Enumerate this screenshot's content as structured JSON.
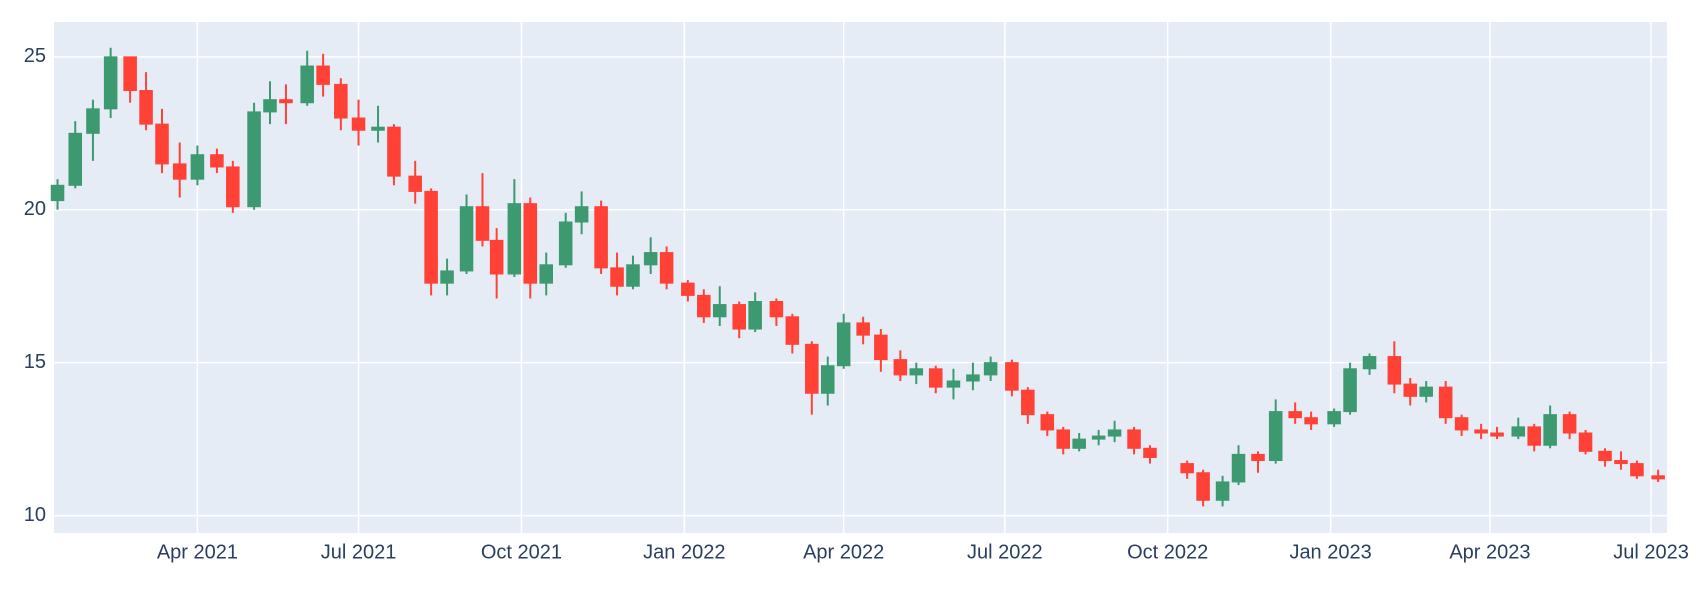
{
  "chart_data": {
    "type": "candlestick",
    "increasing_color": "#3D9970",
    "decreasing_color": "#FF4136",
    "grid": true,
    "xlim": [
      "2021-01-10",
      "2023-07-10"
    ],
    "xticks": [
      {
        "value": "2021-04-01",
        "label": "Apr 2021"
      },
      {
        "value": "2021-07-01",
        "label": "Jul 2021"
      },
      {
        "value": "2021-10-01",
        "label": "Oct 2021"
      },
      {
        "value": "2022-01-01",
        "label": "Jan 2022"
      },
      {
        "value": "2022-04-01",
        "label": "Apr 2022"
      },
      {
        "value": "2022-07-01",
        "label": "Jul 2022"
      },
      {
        "value": "2022-10-01",
        "label": "Oct 2022"
      },
      {
        "value": "2023-01-01",
        "label": "Jan 2023"
      },
      {
        "value": "2023-04-01",
        "label": "Apr 2023"
      },
      {
        "value": "2023-07-01",
        "label": "Jul 2023"
      }
    ],
    "ylim": [
      9.43,
      26.14
    ],
    "yticks": [
      10,
      15,
      20,
      25
    ],
    "x": [
      "2021-01-12",
      "2021-01-22",
      "2021-02-01",
      "2021-02-11",
      "2021-02-22",
      "2021-03-03",
      "2021-03-12",
      "2021-03-22",
      "2021-04-01",
      "2021-04-12",
      "2021-04-21",
      "2021-05-03",
      "2021-05-12",
      "2021-05-21",
      "2021-06-02",
      "2021-06-11",
      "2021-06-21",
      "2021-07-01",
      "2021-07-12",
      "2021-07-21",
      "2021-08-02",
      "2021-08-11",
      "2021-08-20",
      "2021-08-31",
      "2021-09-09",
      "2021-09-17",
      "2021-09-27",
      "2021-10-06",
      "2021-10-15",
      "2021-10-26",
      "2021-11-04",
      "2021-11-15",
      "2021-11-24",
      "2021-12-03",
      "2021-12-13",
      "2021-12-22",
      "2022-01-03",
      "2022-01-12",
      "2022-01-21",
      "2022-02-01",
      "2022-02-10",
      "2022-02-22",
      "2022-03-03",
      "2022-03-14",
      "2022-03-23",
      "2022-04-01",
      "2022-04-12",
      "2022-04-22",
      "2022-05-03",
      "2022-05-12",
      "2022-05-23",
      "2022-06-02",
      "2022-06-13",
      "2022-06-23",
      "2022-07-05",
      "2022-07-14",
      "2022-07-25",
      "2022-08-03",
      "2022-08-12",
      "2022-08-23",
      "2022-09-01",
      "2022-09-12",
      "2022-09-21",
      "2022-10-12",
      "2022-10-21",
      "2022-11-01",
      "2022-11-10",
      "2022-11-21",
      "2022-12-01",
      "2022-12-12",
      "2022-12-21",
      "2023-01-03",
      "2023-01-12",
      "2023-01-23",
      "2023-02-06",
      "2023-02-15",
      "2023-02-24",
      "2023-03-07",
      "2023-03-16",
      "2023-03-27",
      "2023-04-05",
      "2023-04-17",
      "2023-04-26",
      "2023-05-05",
      "2023-05-16",
      "2023-05-25",
      "2023-06-05",
      "2023-06-14",
      "2023-06-23",
      "2023-07-05"
    ],
    "open": [
      20.3,
      20.8,
      22.5,
      23.3,
      25.0,
      23.9,
      22.8,
      21.5,
      21.0,
      21.8,
      21.4,
      20.1,
      23.2,
      23.6,
      23.5,
      24.7,
      24.1,
      23.0,
      22.6,
      22.7,
      21.1,
      20.6,
      17.6,
      18.0,
      20.1,
      19.0,
      17.9,
      20.2,
      17.6,
      18.2,
      19.6,
      20.1,
      18.1,
      17.5,
      18.2,
      18.6,
      17.6,
      17.2,
      16.5,
      16.9,
      16.1,
      17.0,
      16.5,
      15.6,
      14.0,
      14.9,
      16.3,
      15.9,
      15.1,
      14.6,
      14.8,
      14.2,
      14.4,
      14.6,
      15.0,
      14.1,
      13.3,
      12.8,
      12.2,
      12.5,
      12.6,
      12.8,
      12.2,
      11.7,
      11.4,
      10.5,
      11.1,
      12.0,
      11.8,
      13.4,
      13.2,
      13.0,
      13.4,
      14.8,
      15.2,
      14.3,
      13.9,
      14.2,
      13.2,
      12.8,
      12.7,
      12.6,
      12.9,
      12.3,
      13.3,
      12.7,
      12.1,
      11.8,
      11.7,
      11.3
    ],
    "high": [
      21.0,
      22.9,
      23.6,
      25.3,
      25.0,
      24.5,
      23.3,
      22.2,
      22.1,
      22.0,
      21.6,
      23.5,
      24.2,
      24.1,
      25.2,
      25.1,
      24.3,
      23.6,
      23.4,
      22.8,
      21.6,
      20.7,
      18.4,
      20.5,
      21.2,
      19.4,
      21.0,
      20.4,
      18.6,
      19.9,
      20.6,
      20.3,
      18.6,
      18.5,
      19.1,
      18.8,
      17.7,
      17.4,
      17.5,
      17.0,
      17.3,
      17.1,
      16.6,
      15.7,
      15.2,
      16.6,
      16.5,
      16.1,
      15.4,
      15.0,
      14.9,
      14.8,
      15.0,
      15.2,
      15.1,
      14.2,
      13.4,
      12.9,
      12.7,
      12.8,
      13.1,
      12.9,
      12.3,
      11.8,
      11.5,
      11.3,
      12.3,
      12.1,
      13.8,
      13.7,
      13.4,
      13.5,
      15.0,
      15.3,
      15.7,
      14.5,
      14.4,
      14.4,
      13.3,
      13.0,
      12.9,
      13.2,
      13.0,
      13.6,
      13.4,
      12.8,
      12.2,
      12.1,
      11.8,
      11.5
    ],
    "low": [
      20.0,
      20.7,
      21.6,
      23.0,
      23.5,
      22.6,
      21.2,
      20.4,
      20.8,
      21.2,
      19.9,
      20.0,
      22.8,
      22.8,
      23.4,
      23.7,
      22.6,
      22.1,
      22.2,
      20.8,
      20.2,
      17.2,
      17.2,
      17.9,
      18.8,
      17.1,
      17.8,
      17.1,
      17.2,
      18.1,
      19.2,
      17.9,
      17.2,
      17.4,
      17.9,
      17.4,
      17.0,
      16.3,
      16.2,
      15.8,
      16.0,
      16.2,
      15.3,
      13.3,
      13.6,
      14.8,
      15.6,
      14.7,
      14.4,
      14.3,
      14.0,
      13.8,
      14.1,
      14.4,
      13.9,
      13.0,
      12.6,
      12.0,
      12.1,
      12.3,
      12.4,
      12.0,
      11.7,
      11.2,
      10.3,
      10.3,
      11.0,
      11.4,
      11.7,
      13.0,
      12.8,
      12.9,
      13.3,
      14.6,
      14.0,
      13.6,
      13.7,
      13.0,
      12.6,
      12.5,
      12.5,
      12.5,
      12.1,
      12.2,
      12.5,
      12.0,
      11.6,
      11.5,
      11.2,
      11.1
    ],
    "close": [
      20.8,
      22.5,
      23.3,
      25.0,
      23.9,
      22.8,
      21.5,
      21.0,
      21.8,
      21.4,
      20.1,
      23.2,
      23.6,
      23.5,
      24.7,
      24.1,
      23.0,
      22.6,
      22.7,
      21.1,
      20.6,
      17.6,
      18.0,
      20.1,
      19.0,
      17.9,
      20.2,
      17.6,
      18.2,
      19.6,
      20.1,
      18.1,
      17.5,
      18.2,
      18.6,
      17.6,
      17.2,
      16.5,
      16.9,
      16.1,
      17.0,
      16.5,
      15.6,
      14.0,
      14.9,
      16.3,
      15.9,
      15.1,
      14.6,
      14.8,
      14.2,
      14.4,
      14.6,
      15.0,
      14.1,
      13.3,
      12.8,
      12.2,
      12.5,
      12.6,
      12.8,
      12.2,
      11.9,
      11.4,
      10.5,
      11.1,
      12.0,
      11.8,
      13.4,
      13.2,
      13.0,
      13.4,
      14.8,
      15.2,
      14.3,
      13.9,
      14.2,
      13.2,
      12.8,
      12.7,
      12.6,
      12.9,
      12.3,
      13.3,
      12.7,
      12.1,
      11.8,
      11.7,
      11.3,
      11.2
    ]
  }
}
